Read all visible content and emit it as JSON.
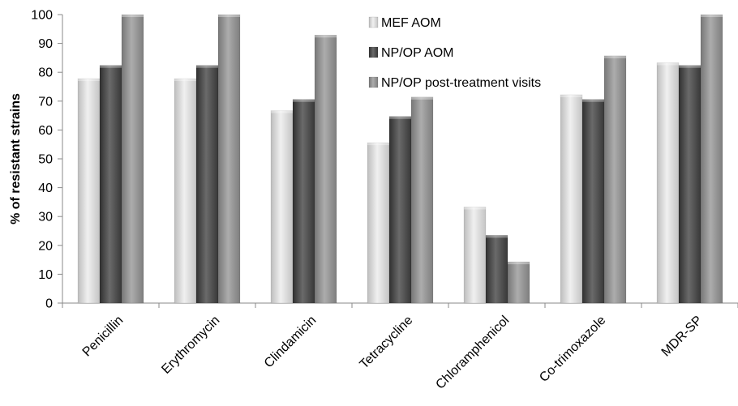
{
  "chart_data": {
    "type": "bar",
    "categories": [
      "Penicillin",
      "Erythromycin",
      "Clindamicin",
      "Tetracycline",
      "Chloramphenicol",
      "Co-trimoxazole",
      "MDR-SP"
    ],
    "series": [
      {
        "name": "MEF AOM",
        "values": [
          77.8,
          77.8,
          66.7,
          55.6,
          33.3,
          72.2,
          83.3
        ],
        "color": "#d4d4d4"
      },
      {
        "name": "NP/OP AOM",
        "values": [
          82.4,
          82.4,
          70.6,
          64.7,
          23.5,
          70.6,
          82.4
        ],
        "color": "#4a4a4a"
      },
      {
        "name": "NP/OP post-treatment visits",
        "values": [
          100,
          100,
          92.9,
          71.4,
          14.3,
          85.7,
          100
        ],
        "color": "#8f8f8f"
      }
    ],
    "ylabel": "% of resistant strains",
    "xlabel": "",
    "ylim": [
      0,
      100
    ],
    "yticks": [
      0,
      10,
      20,
      30,
      40,
      50,
      60,
      70,
      80,
      90,
      100
    ],
    "grid": false,
    "legend_position": "top-center"
  }
}
